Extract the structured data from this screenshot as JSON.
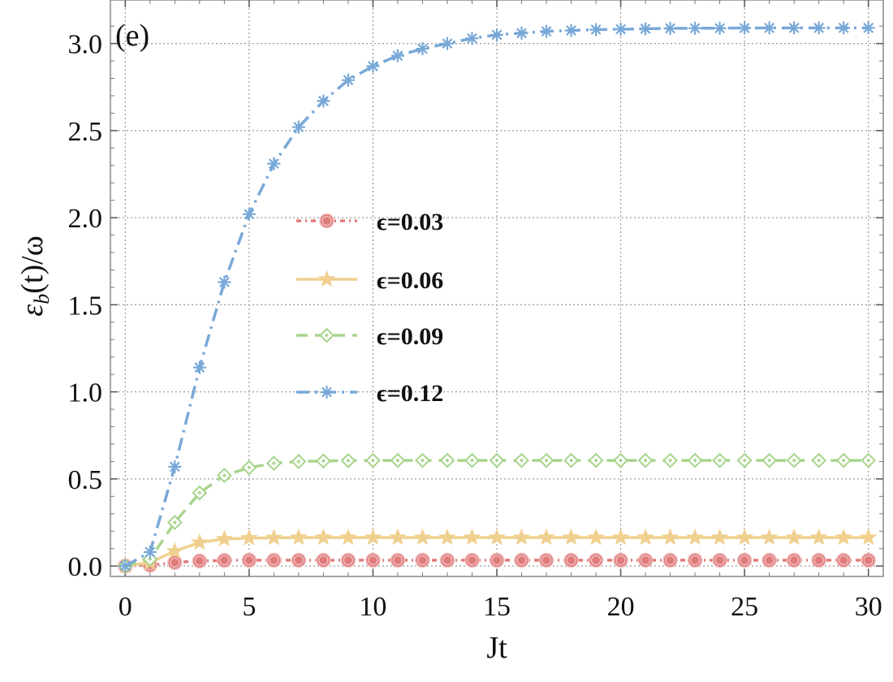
{
  "chart_data": {
    "type": "line",
    "panel_label": "(e)",
    "xlabel": "Jt",
    "ylabel": "εb(t)/ω",
    "ylabel_main": "ε",
    "ylabel_sub": "b",
    "ylabel_rest": "(t)/ω",
    "xlim": [
      -0.6,
      30.6
    ],
    "ylim": [
      -0.06,
      3.25
    ],
    "xticks": [
      0,
      5,
      10,
      15,
      20,
      25,
      30
    ],
    "xtick_labels": [
      "0",
      "5",
      "10",
      "15",
      "20",
      "25",
      "30"
    ],
    "yticks": [
      0.0,
      0.5,
      1.0,
      1.5,
      2.0,
      2.5,
      3.0
    ],
    "ytick_labels": [
      "0.0",
      "0.5",
      "1.0",
      "1.5",
      "2.0",
      "2.5",
      "3.0"
    ],
    "grid": true,
    "legend_position": "center-left",
    "x": [
      0,
      1,
      2,
      3,
      4,
      5,
      6,
      7,
      8,
      9,
      10,
      11,
      12,
      13,
      14,
      15,
      16,
      17,
      18,
      19,
      20,
      21,
      22,
      23,
      24,
      25,
      26,
      27,
      28,
      29,
      30
    ],
    "series": [
      {
        "name": "ϵ=0.03",
        "color": "#e07b7b",
        "marker": "circle",
        "dash": "dotdash-short",
        "values": [
          0.0,
          0.005,
          0.02,
          0.029,
          0.032,
          0.033,
          0.033,
          0.033,
          0.033,
          0.033,
          0.033,
          0.033,
          0.033,
          0.033,
          0.033,
          0.033,
          0.033,
          0.033,
          0.033,
          0.033,
          0.033,
          0.033,
          0.033,
          0.033,
          0.033,
          0.033,
          0.033,
          0.033,
          0.033,
          0.033,
          0.033
        ]
      },
      {
        "name": "ϵ=0.06",
        "color": "#f0d08e",
        "marker": "star",
        "dash": "solid",
        "values": [
          0.0,
          0.02,
          0.085,
          0.135,
          0.155,
          0.16,
          0.162,
          0.163,
          0.163,
          0.163,
          0.163,
          0.163,
          0.163,
          0.163,
          0.163,
          0.163,
          0.163,
          0.163,
          0.163,
          0.163,
          0.163,
          0.163,
          0.163,
          0.163,
          0.163,
          0.163,
          0.163,
          0.163,
          0.163,
          0.163,
          0.163
        ]
      },
      {
        "name": "ϵ=0.09",
        "color": "#a8d48c",
        "marker": "diamond",
        "dash": "dashed",
        "values": [
          0.0,
          0.04,
          0.25,
          0.42,
          0.52,
          0.565,
          0.59,
          0.6,
          0.603,
          0.605,
          0.606,
          0.606,
          0.606,
          0.606,
          0.606,
          0.606,
          0.606,
          0.606,
          0.606,
          0.606,
          0.606,
          0.606,
          0.606,
          0.606,
          0.606,
          0.606,
          0.606,
          0.606,
          0.606,
          0.606,
          0.606
        ]
      },
      {
        "name": "ϵ=0.12",
        "color": "#78a8d8",
        "marker": "asterisk",
        "dash": "dashdot",
        "values": [
          0.0,
          0.08,
          0.57,
          1.14,
          1.63,
          2.02,
          2.31,
          2.52,
          2.67,
          2.79,
          2.87,
          2.93,
          2.97,
          3.0,
          3.03,
          3.05,
          3.06,
          3.07,
          3.075,
          3.08,
          3.082,
          3.085,
          3.087,
          3.088,
          3.088,
          3.089,
          3.09,
          3.09,
          3.09,
          3.09,
          3.09
        ]
      }
    ]
  }
}
